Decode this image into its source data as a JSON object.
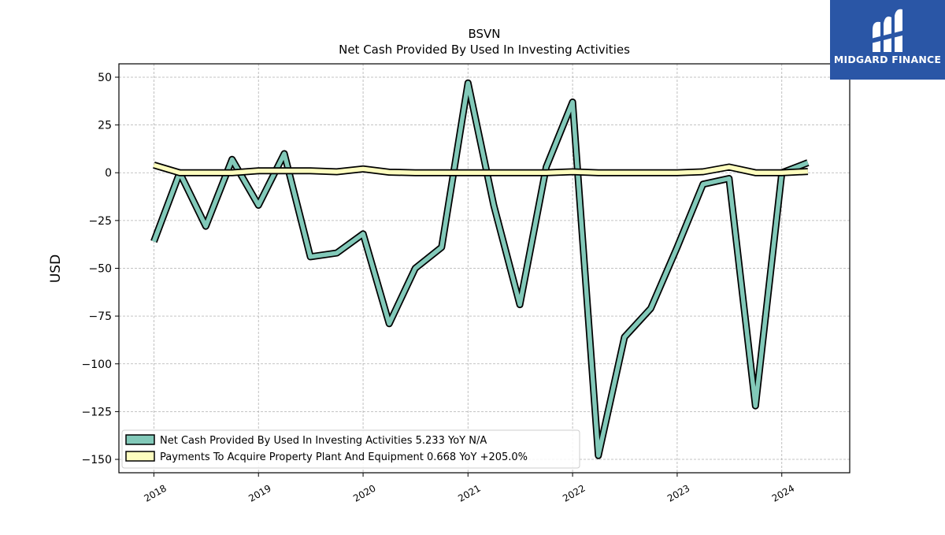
{
  "brand": {
    "name": "MIDGARD FINANCE",
    "color": "#2a56a6"
  },
  "chart_data": {
    "type": "line",
    "title": "BSVN",
    "subtitle": "Net Cash Provided By Used In Investing Activities",
    "xlabel": "",
    "ylabel": "USD",
    "x_ticks": [
      "2018",
      "2019",
      "2020",
      "2021",
      "2022",
      "2023",
      "2024"
    ],
    "y_ticks": [
      50,
      25,
      0,
      -25,
      -50,
      -75,
      -100,
      -125,
      -150
    ],
    "y_tick_labels": [
      "50",
      "25",
      "0",
      "−25",
      "−50",
      "−75",
      "−100",
      "−125",
      "−150"
    ],
    "xlim": [
      "2017-09-01",
      "2024-08-25"
    ],
    "ylim": [
      -157,
      57
    ],
    "grid": true,
    "legend_position": "lower-left",
    "x": [
      "2018-01-01",
      "2018-04-01",
      "2018-07-01",
      "2018-10-01",
      "2019-01-01",
      "2019-04-01",
      "2019-07-01",
      "2019-10-01",
      "2020-01-01",
      "2020-04-01",
      "2020-07-01",
      "2020-10-01",
      "2021-01-01",
      "2021-04-01",
      "2021-07-01",
      "2021-10-01",
      "2022-01-01",
      "2022-04-01",
      "2022-07-01",
      "2022-10-01",
      "2023-01-01",
      "2023-04-01",
      "2023-07-01",
      "2023-10-01",
      "2024-01-01",
      "2024-04-01"
    ],
    "series": [
      {
        "name": "Net Cash Provided By Used In Investing Activities",
        "legend_label": "Net Cash Provided By Used In Investing Activities  5.233 YoY N/A",
        "color": "#82c9b9",
        "values": [
          -36,
          0,
          -28,
          7,
          -17,
          10,
          -44,
          -42,
          -32,
          -79,
          -50,
          -39,
          47,
          -17,
          -69,
          3,
          37,
          -148,
          -86,
          -71,
          -39,
          -6,
          -3,
          -122,
          0,
          5.233
        ]
      },
      {
        "name": "Payments To Acquire Property Plant And Equipment",
        "legend_label": "Payments To Acquire Property Plant And Equipment  0.668 YoY +205.0%",
        "color": "#fdfdbf",
        "values": [
          4,
          0,
          0,
          0,
          1,
          1,
          1,
          0.5,
          2,
          0.3,
          0,
          0,
          0,
          0,
          0,
          0,
          0.5,
          0,
          0,
          0,
          0,
          0.5,
          3,
          0,
          0,
          0.668
        ]
      }
    ]
  }
}
